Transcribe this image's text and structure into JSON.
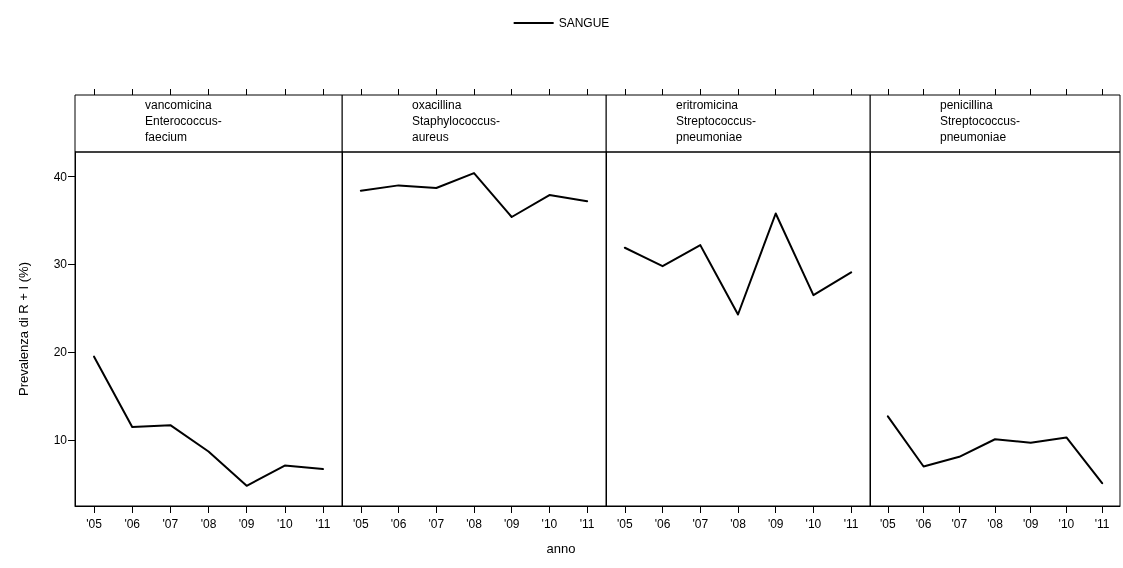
{
  "chart_data": [
    {
      "type": "line",
      "title": "vancomicina\nEnterococcus-\nfaecium",
      "ylabel": "Prevalenza di R + I (%)",
      "legend": "top",
      "categories": [
        "'05",
        "'06",
        "'07",
        "'08",
        "'09",
        "'10",
        "'11"
      ],
      "series": [
        {
          "name": "SANGUE",
          "color": "#000000",
          "values": [
            19.5,
            11.5,
            11.7,
            8.7,
            4.8,
            7.1,
            6.7
          ]
        }
      ],
      "ylim": [
        2.5,
        42.8
      ],
      "yticks": [
        10,
        20,
        30,
        40
      ],
      "grid": false,
      "marker": "none",
      "line_style": "solid"
    },
    {
      "type": "line",
      "title": "oxacillina\nStaphylococcus-\naureus",
      "xlabel": "anno",
      "categories": [
        "'05",
        "'06",
        "'07",
        "'08",
        "'09",
        "'10",
        "'11"
      ],
      "series": [
        {
          "color": "#000000",
          "values": [
            38.4,
            39.0,
            38.7,
            40.4,
            35.4,
            37.9,
            37.2
          ]
        }
      ],
      "ylim": [
        2.5,
        42.8
      ],
      "yticks": [
        10,
        20,
        30,
        40
      ],
      "tick_labels": "x",
      "grid": false,
      "marker": "none",
      "line_style": "solid"
    },
    {
      "type": "line",
      "title": "eritromicina\nStreptococcus-\npneumoniae",
      "categories": [
        "'05",
        "'06",
        "'07",
        "'08",
        "'09",
        "'10",
        "'11"
      ],
      "series": [
        {
          "color": "#000000",
          "values": [
            31.9,
            29.8,
            32.2,
            24.3,
            35.8,
            26.5,
            29.1
          ]
        }
      ],
      "ylim": [
        2.5,
        42.8
      ],
      "yticks": [
        10,
        20,
        30,
        40
      ],
      "tick_labels": "x",
      "grid": false,
      "marker": "none",
      "line_style": "solid"
    },
    {
      "type": "line",
      "title": "penicillina\nStreptococcus-\npneumoniae",
      "categories": [
        "'05",
        "'06",
        "'07",
        "'08",
        "'09",
        "'10",
        "'11"
      ],
      "series": [
        {
          "color": "#000000",
          "values": [
            12.7,
            7.0,
            8.1,
            10.1,
            9.7,
            10.3,
            5.1
          ]
        }
      ],
      "ylim": [
        2.5,
        42.8
      ],
      "yticks": [
        10,
        20,
        30,
        40
      ],
      "tick_labels": "x",
      "grid": false,
      "marker": "none",
      "line_style": "solid"
    }
  ]
}
